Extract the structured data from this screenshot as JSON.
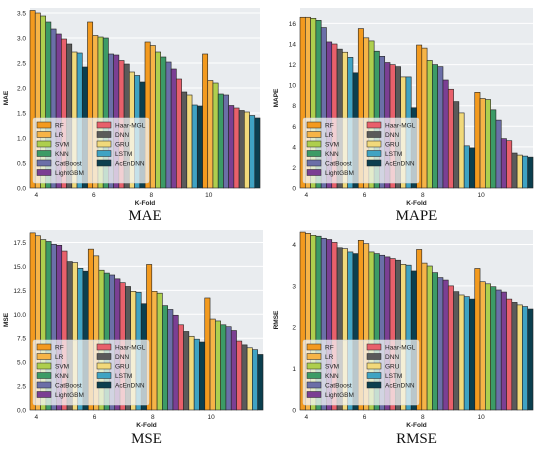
{
  "colors": {
    "RF": "#f39a1e",
    "LR": "#f6b447",
    "SVM": "#aecf4e",
    "KNN": "#3c9b66",
    "CatBoost": "#6b6fa8",
    "LightGBM": "#7b3f93",
    "Haar-MGL": "#e8606b",
    "DNN": "#5a5a5a",
    "GRU": "#f1d97a",
    "LSTM": "#3fa3c3",
    "AcEnDNN": "#0b3f4f",
    "plot_bg": "#e9ecef",
    "grid": "#ffffff"
  },
  "chart_data": [
    {
      "type": "bar",
      "caption": "MAE",
      "xlabel": "K-Fold",
      "ylabel": "MAE",
      "categories": [
        "4",
        "6",
        "8",
        "10"
      ],
      "ylim": [
        0,
        3.6
      ],
      "yticks": [
        "0.0",
        "0.5",
        "1.0",
        "1.5",
        "2.0",
        "2.5",
        "3.0",
        "3.5"
      ],
      "ytick_values": [
        0,
        0.5,
        1.0,
        1.5,
        2.0,
        2.5,
        3.0,
        3.5
      ],
      "legend": "bottom-left",
      "grid": true,
      "series": [
        {
          "name": "RF",
          "values": [
            3.55,
            3.32,
            2.92,
            2.68
          ]
        },
        {
          "name": "LR",
          "values": [
            3.5,
            3.05,
            2.85,
            2.15
          ]
        },
        {
          "name": "SVM",
          "values": [
            3.44,
            3.02,
            2.72,
            2.1
          ]
        },
        {
          "name": "KNN",
          "values": [
            3.32,
            3.0,
            2.62,
            1.88
          ]
        },
        {
          "name": "CatBoost",
          "values": [
            3.18,
            2.68,
            2.52,
            1.86
          ]
        },
        {
          "name": "LightGBM",
          "values": [
            3.08,
            2.66,
            2.38,
            1.65
          ]
        },
        {
          "name": "Haar-MGL",
          "values": [
            2.98,
            2.55,
            2.18,
            1.6
          ]
        },
        {
          "name": "DNN",
          "values": [
            2.88,
            2.48,
            1.92,
            1.55
          ]
        },
        {
          "name": "GRU",
          "values": [
            2.72,
            2.32,
            1.86,
            1.52
          ]
        },
        {
          "name": "LSTM",
          "values": [
            2.7,
            2.25,
            1.66,
            1.45
          ]
        },
        {
          "name": "AcEnDNN",
          "values": [
            2.42,
            2.12,
            1.64,
            1.4
          ]
        }
      ]
    },
    {
      "type": "bar",
      "caption": "MAPE",
      "xlabel": "K-Fold",
      "ylabel": "MAPE",
      "categories": [
        "4",
        "6",
        "8",
        "10"
      ],
      "ylim": [
        0,
        17.5
      ],
      "yticks": [
        "0",
        "2",
        "4",
        "6",
        "8",
        "10",
        "12",
        "14",
        "16"
      ],
      "ytick_values": [
        0,
        2,
        4,
        6,
        8,
        10,
        12,
        14,
        16
      ],
      "legend": "bottom-left",
      "grid": true,
      "series": [
        {
          "name": "RF",
          "values": [
            16.6,
            15.5,
            13.9,
            9.3
          ]
        },
        {
          "name": "LR",
          "values": [
            16.6,
            14.6,
            13.6,
            8.7
          ]
        },
        {
          "name": "SVM",
          "values": [
            16.5,
            14.3,
            12.4,
            8.6
          ]
        },
        {
          "name": "KNN",
          "values": [
            16.3,
            13.3,
            12.0,
            7.6
          ]
        },
        {
          "name": "CatBoost",
          "values": [
            15.6,
            12.8,
            11.8,
            6.6
          ]
        },
        {
          "name": "LightGBM",
          "values": [
            14.2,
            12.2,
            10.5,
            4.8
          ]
        },
        {
          "name": "Haar-MGL",
          "values": [
            14.0,
            12.0,
            9.6,
            4.6
          ]
        },
        {
          "name": "DNN",
          "values": [
            13.5,
            11.8,
            8.4,
            3.4
          ]
        },
        {
          "name": "GRU",
          "values": [
            13.2,
            10.8,
            7.3,
            3.2
          ]
        },
        {
          "name": "LSTM",
          "values": [
            12.7,
            10.8,
            4.1,
            3.1
          ]
        },
        {
          "name": "AcEnDNN",
          "values": [
            11.2,
            7.8,
            3.9,
            3.0
          ]
        }
      ]
    },
    {
      "type": "bar",
      "caption": "MSE",
      "xlabel": "K-Fold",
      "ylabel": "MSE",
      "categories": [
        "4",
        "6",
        "8",
        "10"
      ],
      "ylim": [
        0,
        18.8
      ],
      "yticks": [
        "0.0",
        "2.5",
        "5.0",
        "7.5",
        "10.0",
        "12.5",
        "15.0",
        "17.5"
      ],
      "ytick_values": [
        0,
        2.5,
        5.0,
        7.5,
        10.0,
        12.5,
        15.0,
        17.5
      ],
      "legend": "bottom-left",
      "grid": true,
      "series": [
        {
          "name": "RF",
          "values": [
            18.5,
            16.8,
            15.2,
            11.7
          ]
        },
        {
          "name": "LR",
          "values": [
            18.2,
            16.1,
            12.4,
            9.5
          ]
        },
        {
          "name": "SVM",
          "values": [
            17.8,
            14.6,
            12.2,
            9.3
          ]
        },
        {
          "name": "KNN",
          "values": [
            17.6,
            14.3,
            10.9,
            8.9
          ]
        },
        {
          "name": "CatBoost",
          "values": [
            17.3,
            14.1,
            10.5,
            8.7
          ]
        },
        {
          "name": "LightGBM",
          "values": [
            17.2,
            13.7,
            9.9,
            8.3
          ]
        },
        {
          "name": "Haar-MGL",
          "values": [
            16.6,
            13.3,
            8.9,
            7.2
          ]
        },
        {
          "name": "DNN",
          "values": [
            15.5,
            12.9,
            8.2,
            6.8
          ]
        },
        {
          "name": "GRU",
          "values": [
            15.4,
            12.4,
            7.7,
            6.5
          ]
        },
        {
          "name": "LSTM",
          "values": [
            14.8,
            12.3,
            7.4,
            6.3
          ]
        },
        {
          "name": "AcEnDNN",
          "values": [
            14.5,
            11.1,
            7.1,
            5.8
          ]
        }
      ]
    },
    {
      "type": "bar",
      "caption": "RMSE",
      "xlabel": "K-Fold",
      "ylabel": "RMSE",
      "categories": [
        "4",
        "6",
        "8",
        "10"
      ],
      "ylim": [
        0,
        4.35
      ],
      "yticks": [
        "0",
        "1",
        "2",
        "3",
        "4"
      ],
      "ytick_values": [
        0,
        1,
        2,
        3,
        4
      ],
      "legend": "bottom-left",
      "grid": true,
      "series": [
        {
          "name": "RF",
          "values": [
            4.3,
            4.1,
            3.88,
            3.42
          ]
        },
        {
          "name": "LR",
          "values": [
            4.27,
            4.02,
            3.55,
            3.1
          ]
        },
        {
          "name": "SVM",
          "values": [
            4.22,
            3.82,
            3.48,
            3.05
          ]
        },
        {
          "name": "KNN",
          "values": [
            4.2,
            3.78,
            3.32,
            2.98
          ]
        },
        {
          "name": "CatBoost",
          "values": [
            4.15,
            3.74,
            3.2,
            2.9
          ]
        },
        {
          "name": "LightGBM",
          "values": [
            4.12,
            3.7,
            3.14,
            2.85
          ]
        },
        {
          "name": "Haar-MGL",
          "values": [
            4.05,
            3.66,
            3.0,
            2.68
          ]
        },
        {
          "name": "DNN",
          "values": [
            3.92,
            3.62,
            2.86,
            2.6
          ]
        },
        {
          "name": "GRU",
          "values": [
            3.9,
            3.52,
            2.78,
            2.54
          ]
        },
        {
          "name": "LSTM",
          "values": [
            3.82,
            3.5,
            2.74,
            2.5
          ]
        },
        {
          "name": "AcEnDNN",
          "values": [
            3.78,
            3.36,
            2.68,
            2.44
          ]
        }
      ]
    }
  ]
}
